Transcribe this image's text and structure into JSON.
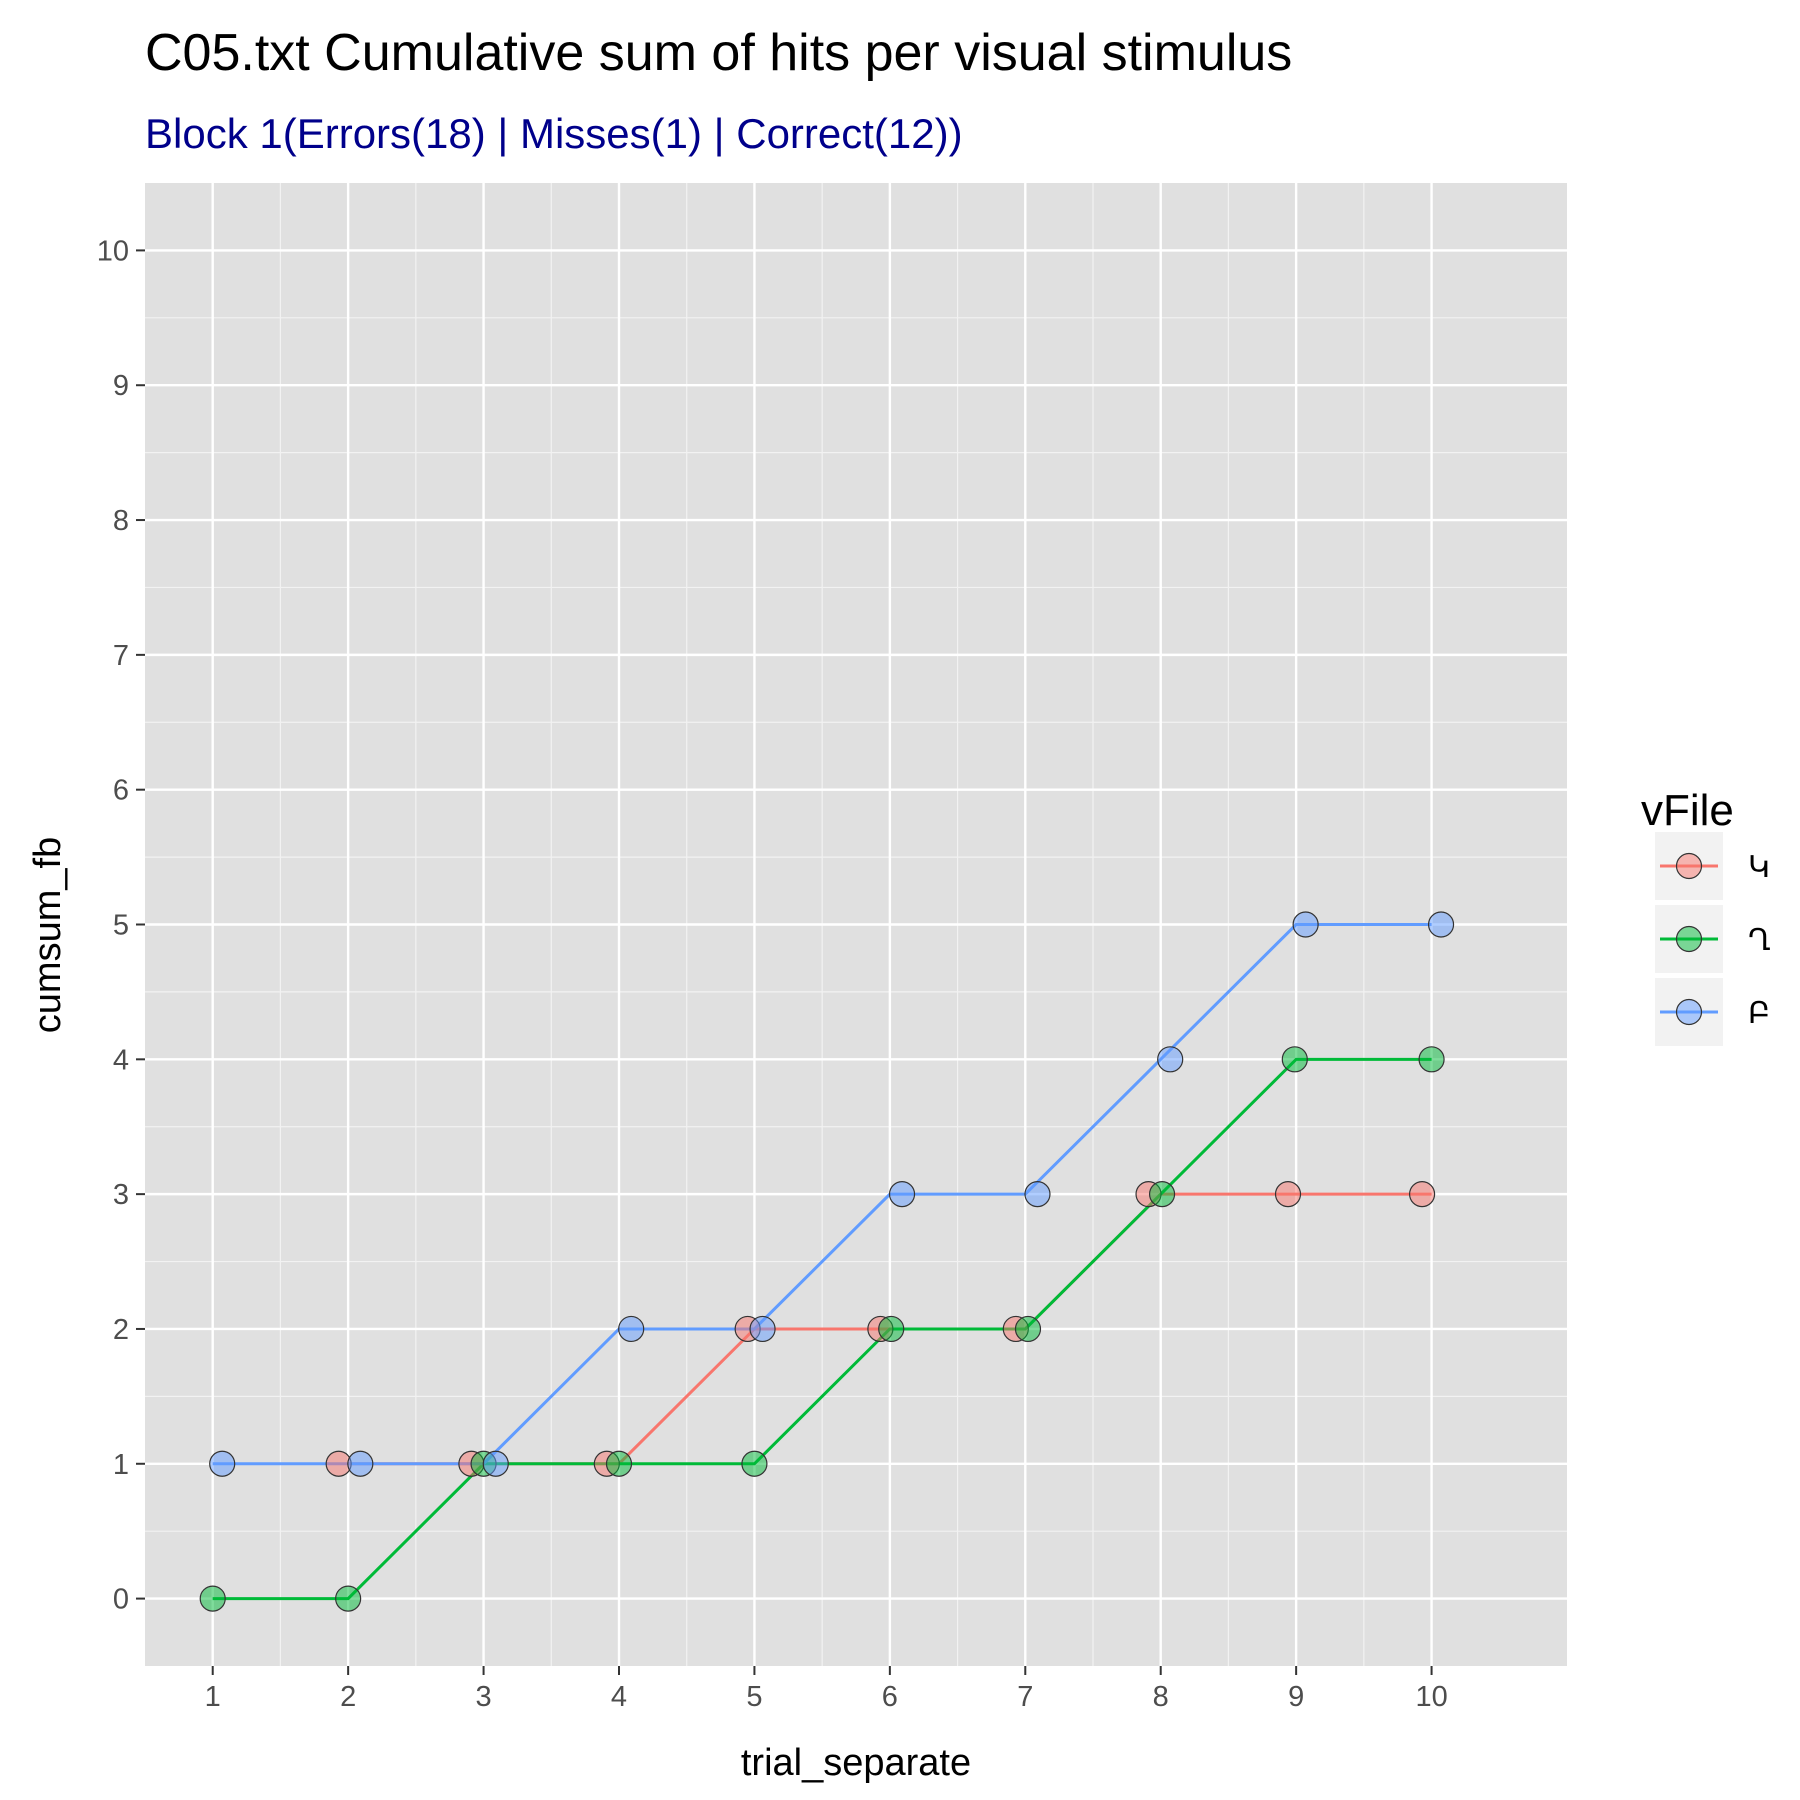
{
  "chart_data": {
    "type": "line",
    "title": "C05.txt Cumulative sum of hits per visual stimulus",
    "subtitle": "Block 1(Errors(18) | Misses(1) | Correct(12))",
    "xlabel": "trial_separate",
    "ylabel": "cumsum_fb",
    "x": [
      1,
      2,
      3,
      4,
      5,
      6,
      7,
      8,
      9,
      10
    ],
    "x_ticks": [
      1,
      2,
      3,
      4,
      5,
      6,
      7,
      8,
      9,
      10
    ],
    "y_ticks": [
      0,
      1,
      2,
      3,
      4,
      5,
      6,
      7,
      8,
      9,
      10
    ],
    "xlim": [
      0.5,
      11
    ],
    "ylim": [
      -0.5,
      10.5
    ],
    "grid": true,
    "legend_title": "vFile",
    "legend_position": "right",
    "series": [
      {
        "name": "Կ",
        "color": "#F8766D",
        "values": [
          null,
          1,
          1,
          1,
          2,
          2,
          2,
          3,
          3,
          3
        ]
      },
      {
        "name": "Ղ",
        "color": "#00BA38",
        "values": [
          0,
          0,
          1,
          1,
          1,
          2,
          2,
          3,
          4,
          4
        ]
      },
      {
        "name": "Բ",
        "color": "#619CFF",
        "values": [
          1,
          1,
          1,
          2,
          2,
          3,
          3,
          4,
          5,
          5
        ]
      }
    ]
  }
}
